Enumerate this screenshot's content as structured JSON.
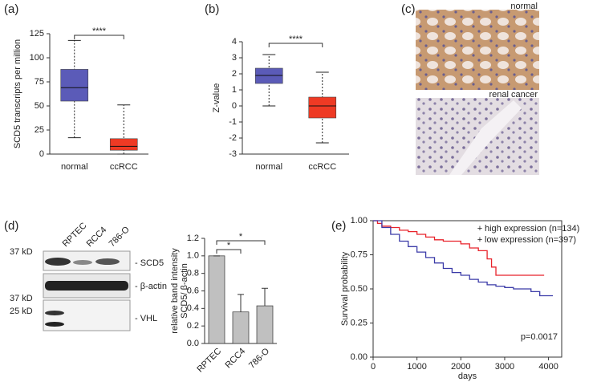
{
  "figure_c": {
    "panel": "(c)",
    "top_label": "normal",
    "bottom_label": "renal cancer"
  },
  "blot": {
    "panel": "(d)",
    "lanes": [
      "RPTEC",
      "RCC4",
      "786-O"
    ],
    "markers": [
      "37 kD",
      "37 kD",
      "25 kD"
    ],
    "bands": [
      "- SCD5",
      "- β-actin",
      "- VHL"
    ]
  },
  "chart_data": [
    {
      "type": "box",
      "panel": "(a)",
      "ylabel": "SCD5 transcripts per million",
      "categories": [
        "normal",
        "ccRCC"
      ],
      "colors": [
        "#5b5bb8",
        "#ee3a24"
      ],
      "stats": [
        {
          "min": 17,
          "q1": 55,
          "median": 69,
          "q3": 88,
          "max": 118
        },
        {
          "min": 0,
          "q1": 4,
          "median": 8,
          "q3": 16,
          "max": 51
        }
      ],
      "ylim": [
        0,
        125
      ],
      "yticks": [
        0,
        25,
        50,
        75,
        100,
        125
      ],
      "annotations": [
        {
          "text": "****",
          "between": [
            "normal",
            "ccRCC"
          ]
        }
      ]
    },
    {
      "type": "box",
      "panel": "(b)",
      "ylabel": "Z-value",
      "categories": [
        "normal",
        "ccRCC"
      ],
      "colors": [
        "#5b5bb8",
        "#ee3a24"
      ],
      "stats": [
        {
          "min": 0,
          "q1": 1.4,
          "median": 1.9,
          "q3": 2.35,
          "max": 3.2
        },
        {
          "min": -2.3,
          "q1": -0.75,
          "median": 0,
          "q3": 0.55,
          "max": 2.1
        }
      ],
      "ylim": [
        -3,
        4
      ],
      "yticks": [
        -3,
        -2,
        -1,
        0,
        1,
        2,
        3,
        4
      ],
      "annotations": [
        {
          "text": "****",
          "between": [
            "normal",
            "ccRCC"
          ]
        }
      ]
    },
    {
      "type": "bar",
      "ylabel": [
        "relative band intensity",
        "SCD5/ β-actin"
      ],
      "categories": [
        "RPTEC",
        "RCC4",
        "786-O"
      ],
      "values": [
        1.0,
        0.36,
        0.43
      ],
      "errors": [
        0,
        0.2,
        0.2
      ],
      "color": "#c0c0c0",
      "ylim": [
        0,
        1.2
      ],
      "yticks": [
        {
          "value": 0,
          "label": "0.0"
        },
        {
          "value": 0.2,
          "label": "0.2"
        },
        {
          "value": 0.4,
          "label": "0.4"
        },
        {
          "value": 0.6,
          "label": "0.6"
        },
        {
          "value": 0.8,
          "label": "0.8"
        },
        {
          "value": 1.0,
          "label": "1.0"
        },
        {
          "value": 1.2,
          "label": "1.2"
        }
      ],
      "annotations": [
        {
          "text": "*",
          "between": [
            "RPTEC",
            "RCC4"
          ]
        },
        {
          "text": "*",
          "between": [
            "RPTEC",
            "786-O"
          ]
        }
      ]
    },
    {
      "type": "line",
      "panel": "(e)",
      "xlabel": "days",
      "ylabel": "Survival probability",
      "annotation": "p=0.0017",
      "legend": "top-right",
      "xlim": [
        0,
        4300
      ],
      "xticks": [
        0,
        1000,
        2000,
        3000,
        4000
      ],
      "ylim": [
        0,
        1
      ],
      "yticks": [
        {
          "value": 0,
          "label": "0.00"
        },
        {
          "value": 0.25,
          "label": "0.25"
        },
        {
          "value": 0.5,
          "label": "0.50"
        },
        {
          "value": 0.75,
          "label": "0.75"
        },
        {
          "value": 1,
          "label": "1.00"
        }
      ],
      "series": [
        {
          "name": "high expression (n=134)",
          "color": "#e8222a",
          "x": [
            0,
            100,
            200,
            400,
            600,
            800,
            1000,
            1200,
            1400,
            1600,
            1800,
            2000,
            2200,
            2400,
            2600,
            2700,
            2800,
            3000,
            3200,
            3500,
            3900
          ],
          "values": [
            1.0,
            0.98,
            0.96,
            0.95,
            0.93,
            0.92,
            0.9,
            0.88,
            0.86,
            0.85,
            0.85,
            0.83,
            0.8,
            0.78,
            0.72,
            0.66,
            0.6,
            0.6,
            0.6,
            0.6,
            0.6
          ]
        },
        {
          "name": "low expression (n=397)",
          "color": "#3b3ba8",
          "x": [
            0,
            200,
            400,
            600,
            800,
            1000,
            1200,
            1400,
            1600,
            1800,
            2000,
            2200,
            2400,
            2600,
            2800,
            3000,
            3200,
            3400,
            3600,
            3800,
            4100
          ],
          "values": [
            1.0,
            0.95,
            0.9,
            0.85,
            0.81,
            0.77,
            0.73,
            0.69,
            0.65,
            0.62,
            0.6,
            0.57,
            0.55,
            0.53,
            0.52,
            0.51,
            0.5,
            0.5,
            0.48,
            0.45,
            0.45
          ]
        }
      ]
    }
  ]
}
